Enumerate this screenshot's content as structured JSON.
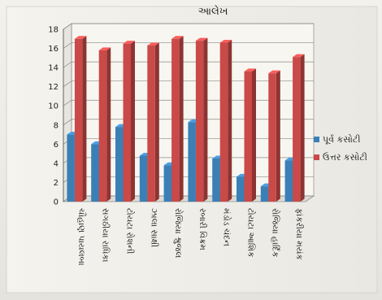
{
  "chart_data": {
    "type": "bar",
    "title": "આલેખ",
    "xlabel": "",
    "ylabel": "",
    "ylim": [
      0,
      18
    ],
    "yticks": [
      0,
      2,
      4,
      6,
      8,
      10,
      12,
      14,
      16,
      18
    ],
    "grid": true,
    "legend_position": "right",
    "categories": [
      "ચૌહાણ પાયલબા",
      "સગઠીયા રાધિકા",
      "ટોયટા રોશની",
      "ઝાલા સાક્ષી",
      "રોજિયા શ્રુજલ",
      "રબારી વિક્રમ",
      "મંડોડ ચંદન",
      "ટોયટા આશિક",
      "રોજિયા હાર્દિક",
      "ફાંકરીયા મયંક"
    ],
    "series": [
      {
        "name": "પૂર્વ કસોટી",
        "color": "#3a7fb6",
        "values": [
          7,
          6,
          7.8,
          4.8,
          3.8,
          8.3,
          4.5,
          2.6,
          1.6,
          4.3
        ]
      },
      {
        "name": "ઉત્તર કસોટી",
        "color": "#c94a48",
        "values": [
          17,
          15.8,
          16.5,
          16.3,
          17,
          16.8,
          16.6,
          13.6,
          13.4,
          15.1
        ]
      }
    ]
  }
}
